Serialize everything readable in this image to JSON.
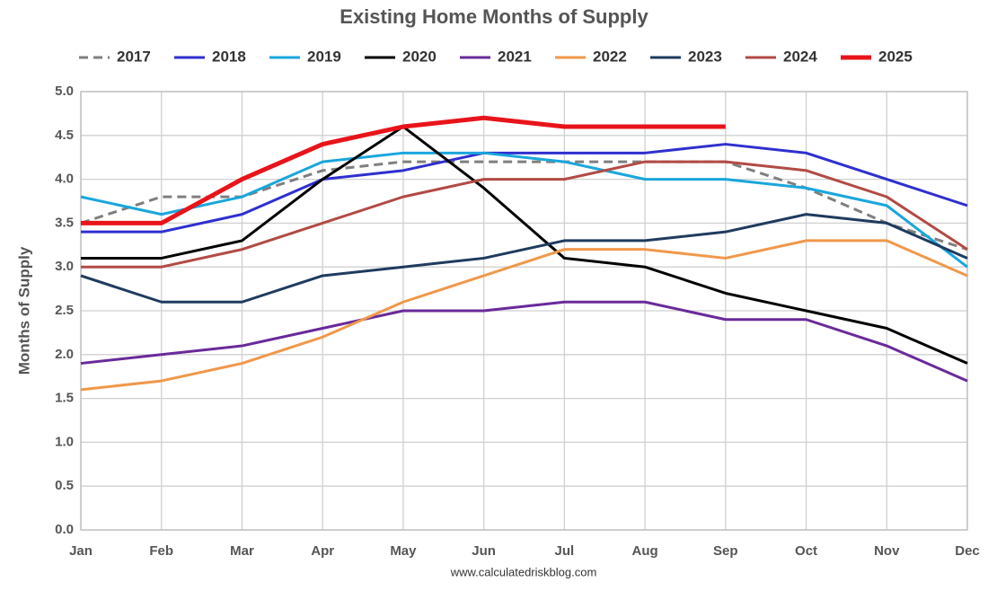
{
  "chart_data": {
    "type": "line",
    "title": "Existing Home Months of Supply",
    "y_label": "Months of Supply",
    "source": "www.calculatedriskblog.com",
    "categories": [
      "Jan",
      "Feb",
      "Mar",
      "Apr",
      "May",
      "Jun",
      "Jul",
      "Aug",
      "Sep",
      "Oct",
      "Nov",
      "Dec"
    ],
    "ylim": [
      0,
      5
    ],
    "yticks": [
      {
        "value": 0,
        "label": "0.0"
      },
      0.5,
      {
        "value": 1,
        "label": "1.0"
      },
      1.5,
      {
        "value": 2,
        "label": "2.0"
      },
      2.5,
      {
        "value": 3,
        "label": "3.0"
      },
      3.5,
      {
        "value": 4,
        "label": "4.0"
      },
      4.5,
      {
        "value": 5,
        "label": "5.0"
      }
    ],
    "grid": true,
    "legend": "top",
    "series": [
      {
        "name": "2017",
        "color": "#7f7f7f",
        "style": "dashed",
        "values": [
          3.5,
          3.8,
          3.8,
          4.1,
          4.2,
          4.2,
          4.2,
          4.2,
          4.2,
          3.9,
          3.5,
          3.2
        ]
      },
      {
        "name": "2018",
        "color": "#2f2fd0",
        "values": [
          3.4,
          3.4,
          3.6,
          4.0,
          4.1,
          4.3,
          4.3,
          4.3,
          4.4,
          4.3,
          4.0,
          3.7
        ]
      },
      {
        "name": "2019",
        "color": "#1aa6dc",
        "values": [
          3.8,
          3.6,
          3.8,
          4.2,
          4.3,
          4.3,
          4.2,
          4.0,
          4.0,
          3.9,
          3.7,
          3.0
        ]
      },
      {
        "name": "2020",
        "color": "#000000",
        "values": [
          3.1,
          3.1,
          3.3,
          4.0,
          4.6,
          3.9,
          3.1,
          3.0,
          2.7,
          2.5,
          2.3,
          1.9
        ]
      },
      {
        "name": "2021",
        "color": "#6a2a9a",
        "values": [
          1.9,
          2.0,
          2.1,
          2.3,
          2.5,
          2.5,
          2.6,
          2.6,
          2.4,
          2.4,
          2.1,
          1.7
        ]
      },
      {
        "name": "2022",
        "color": "#f0984a",
        "values": [
          1.6,
          1.7,
          1.9,
          2.2,
          2.6,
          2.9,
          3.2,
          3.2,
          3.1,
          3.3,
          3.3,
          2.9
        ]
      },
      {
        "name": "2023",
        "color": "#1f3b5e",
        "values": [
          2.9,
          2.6,
          2.6,
          2.9,
          3.0,
          3.1,
          3.3,
          3.3,
          3.4,
          3.6,
          3.5,
          3.1
        ]
      },
      {
        "name": "2024",
        "color": "#b24a45",
        "values": [
          3.0,
          3.0,
          3.2,
          3.5,
          3.8,
          4.0,
          4.0,
          4.2,
          4.2,
          4.1,
          3.8,
          3.2
        ]
      },
      {
        "name": "2025",
        "color": "#e8141a",
        "style": "bold",
        "values": [
          3.5,
          3.5,
          4.0,
          4.4,
          4.6,
          4.7,
          4.6,
          4.6,
          4.6,
          null,
          null,
          null
        ]
      }
    ]
  }
}
